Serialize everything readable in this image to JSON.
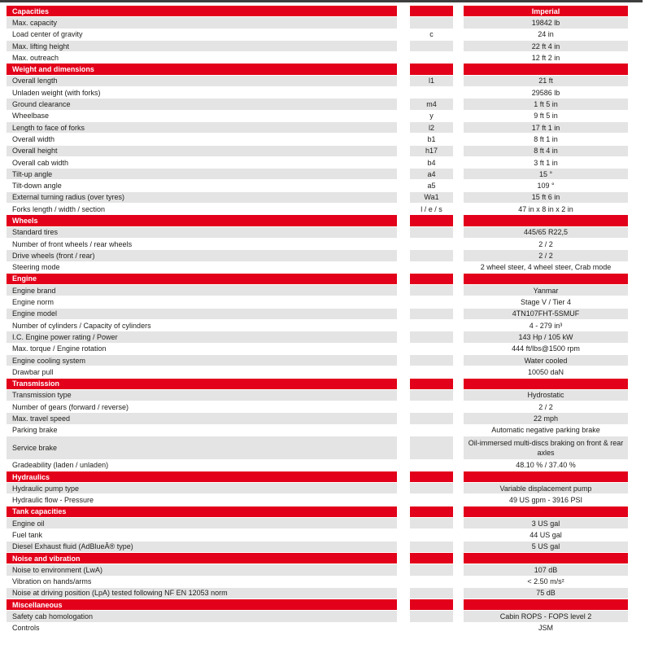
{
  "unit_header": "Imperial",
  "colors": {
    "header_red": "#e2001a",
    "row_gray": "#e4e4e4",
    "top_bar": "#3e3e3e",
    "text": "#1d1d1b"
  },
  "sections": [
    {
      "title": "Capacities",
      "rows": [
        {
          "label": "Max. capacity",
          "symbol": "",
          "value": "19842 lb"
        },
        {
          "label": "Load center of gravity",
          "symbol": "c",
          "value": "24 in"
        },
        {
          "label": "Max. lifting height",
          "symbol": "",
          "value": "22 ft 4 in"
        },
        {
          "label": "Max. outreach",
          "symbol": "",
          "value": "12 ft 2 in"
        }
      ]
    },
    {
      "title": "Weight and dimensions",
      "rows": [
        {
          "label": "Overall length",
          "symbol": "l1",
          "value": "21 ft"
        },
        {
          "label": "Unladen weight (with forks)",
          "symbol": "",
          "value": "29586 lb"
        },
        {
          "label": "Ground clearance",
          "symbol": "m4",
          "value": "1 ft 5 in"
        },
        {
          "label": "Wheelbase",
          "symbol": "y",
          "value": "9 ft 5 in"
        },
        {
          "label": "Length to face of forks",
          "symbol": "l2",
          "value": "17 ft 1 in"
        },
        {
          "label": "Overall width",
          "symbol": "b1",
          "value": "8 ft 1 in"
        },
        {
          "label": "Overall height",
          "symbol": "h17",
          "value": "8 ft 4 in"
        },
        {
          "label": "Overall cab width",
          "symbol": "b4",
          "value": "3 ft 1 in"
        },
        {
          "label": "Tilt-up angle",
          "symbol": "a4",
          "value": "15 °"
        },
        {
          "label": "Tilt-down angle",
          "symbol": "a5",
          "value": "109 °"
        },
        {
          "label": "External turning radius (over tyres)",
          "symbol": "Wa1",
          "value": "15 ft 6 in"
        },
        {
          "label": "Forks length / width / section",
          "symbol": "l / e / s",
          "value": "47 in x 8 in x 2 in"
        }
      ]
    },
    {
      "title": "Wheels",
      "rows": [
        {
          "label": "Standard tires",
          "symbol": "",
          "value": "445/65 R22,5"
        },
        {
          "label": "Number of front wheels / rear wheels",
          "symbol": "",
          "value": "2 / 2"
        },
        {
          "label": "Drive wheels (front / rear)",
          "symbol": "",
          "value": "2 / 2"
        },
        {
          "label": "Steering mode",
          "symbol": "",
          "value": "2 wheel steer, 4 wheel steer, Crab mode"
        }
      ]
    },
    {
      "title": "Engine",
      "rows": [
        {
          "label": "Engine brand",
          "symbol": "",
          "value": "Yanmar"
        },
        {
          "label": "Engine norm",
          "symbol": "",
          "value": "Stage V / Tier 4"
        },
        {
          "label": "Engine model",
          "symbol": "",
          "value": "4TN107FHT-5SMUF"
        },
        {
          "label": "Number of cylinders / Capacity of cylinders",
          "symbol": "",
          "value": "4 - 279 in³"
        },
        {
          "label": "I.C. Engine power rating / Power",
          "symbol": "",
          "value": "143 Hp / 105 kW"
        },
        {
          "label": "Max. torque / Engine rotation",
          "symbol": "",
          "value": "444 ft/lbs@1500 rpm"
        },
        {
          "label": "Engine cooling system",
          "symbol": "",
          "value": "Water cooled"
        },
        {
          "label": "Drawbar pull",
          "symbol": "",
          "value": "10050 daN"
        }
      ]
    },
    {
      "title": "Transmission",
      "rows": [
        {
          "label": "Transmission type",
          "symbol": "",
          "value": "Hydrostatic"
        },
        {
          "label": "Number of gears (forward / reverse)",
          "symbol": "",
          "value": "2 / 2"
        },
        {
          "label": "Max. travel speed",
          "symbol": "",
          "value": "22 mph"
        },
        {
          "label": "Parking brake",
          "symbol": "",
          "value": "Automatic negative parking brake"
        },
        {
          "label": "Service brake",
          "symbol": "",
          "value": "Oil-immersed multi-discs braking on front & rear axles",
          "tall": true
        },
        {
          "label": "Gradeability (laden / unladen)",
          "symbol": "",
          "value": "48.10 % / 37.40 %"
        }
      ]
    },
    {
      "title": "Hydraulics",
      "rows": [
        {
          "label": "Hydraulic pump type",
          "symbol": "",
          "value": "Variable displacement pump"
        },
        {
          "label": "Hydraulic flow - Pressure",
          "symbol": "",
          "value": "49 US gpm - 3916 PSI"
        }
      ]
    },
    {
      "title": "Tank capacities",
      "rows": [
        {
          "label": "Engine oil",
          "symbol": "",
          "value": "3 US gal"
        },
        {
          "label": "Fuel tank",
          "symbol": "",
          "value": "44 US gal"
        },
        {
          "label": "Diesel Exhaust fluid (AdBlueÂ® type)",
          "symbol": "",
          "value": "5 US gal"
        }
      ]
    },
    {
      "title": "Noise and vibration",
      "rows": [
        {
          "label": "Noise to environment (LwA)",
          "symbol": "",
          "value": "107 dB"
        },
        {
          "label": "Vibration on hands/arms",
          "symbol": "",
          "value": "< 2.50 m/s²"
        },
        {
          "label": "Noise at driving position (LpA) tested following NF EN 12053 norm",
          "symbol": "",
          "value": "75 dB"
        }
      ]
    },
    {
      "title": "Miscellaneous",
      "rows": [
        {
          "label": "Safety cab homologation",
          "symbol": "",
          "value": "Cabin ROPS - FOPS level 2"
        },
        {
          "label": "Controls",
          "symbol": "",
          "value": "JSM"
        }
      ]
    }
  ]
}
